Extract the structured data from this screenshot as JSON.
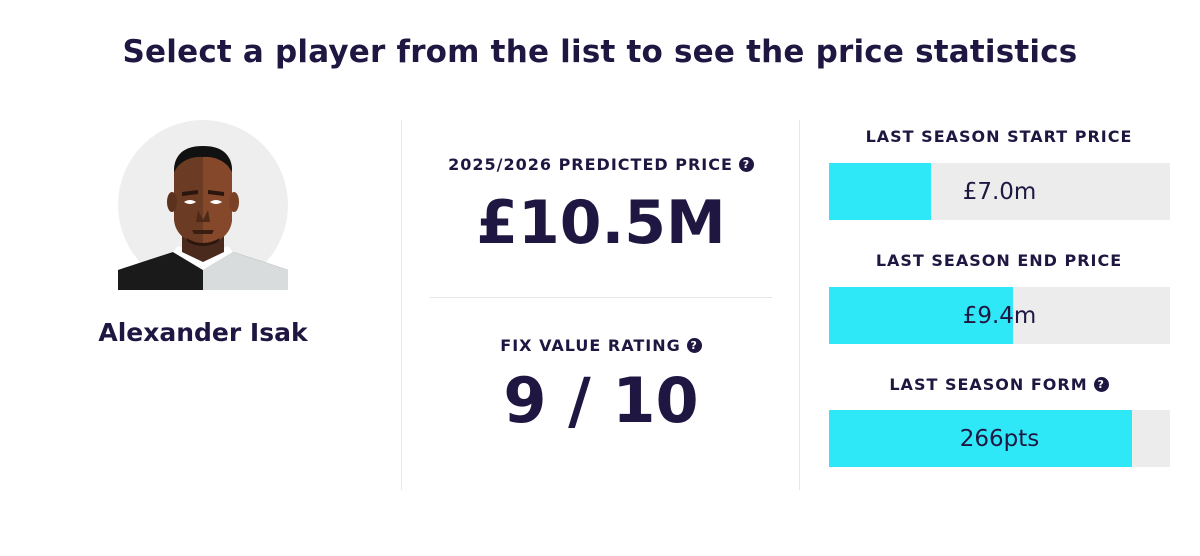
{
  "headline": "Select a player from the list to see the price statistics",
  "player": {
    "name": "Alexander Isak",
    "avatar_icon": "player-avatar-illustration"
  },
  "predicted_price": {
    "label": "2025/2026 PREDICTED PRICE",
    "value": "£10.5M"
  },
  "value_rating": {
    "label": "FIX VALUE RATING",
    "value": "9 / 10"
  },
  "stats": [
    {
      "label": "LAST SEASON START PRICE",
      "value": "£7.0m",
      "fill": 0.3,
      "help": false
    },
    {
      "label": "LAST SEASON END PRICE",
      "value": "£9.4m",
      "fill": 0.54,
      "help": false
    },
    {
      "label": "LAST SEASON FORM",
      "value": "266pts",
      "fill": 0.89,
      "help": true
    }
  ],
  "help_icon_glyph": "?",
  "colors": {
    "text": "#1f1741",
    "bar_fill": "#2ee8f8",
    "bar_track": "#ececec"
  }
}
